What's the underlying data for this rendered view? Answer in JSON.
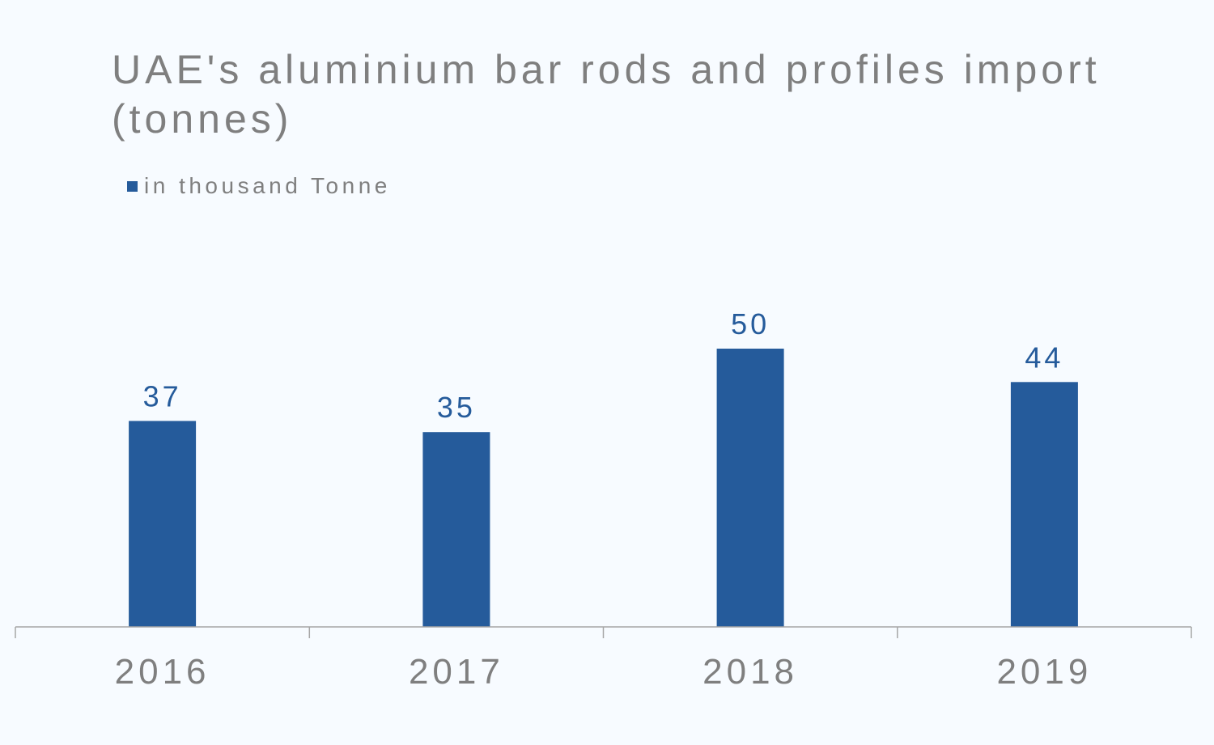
{
  "chart_data": {
    "type": "bar",
    "title": "UAE's aluminium bar rods and profiles import (tonnes)",
    "categories": [
      "2016",
      "2017",
      "2018",
      "2019"
    ],
    "series": [
      {
        "name": "in thousand Tonne",
        "values": [
          37,
          35,
          50,
          44
        ]
      }
    ],
    "data_labels": [
      "37",
      "35",
      "50",
      "44"
    ],
    "xlabel": "",
    "ylabel": "",
    "ylim": [
      0,
      50
    ],
    "grid": false,
    "legend_position": "top-left",
    "bar_color": "#255b9b",
    "axis_color": "#a6a6a6",
    "text_color": "#7f7f7f",
    "label_color": "#255b9b"
  }
}
